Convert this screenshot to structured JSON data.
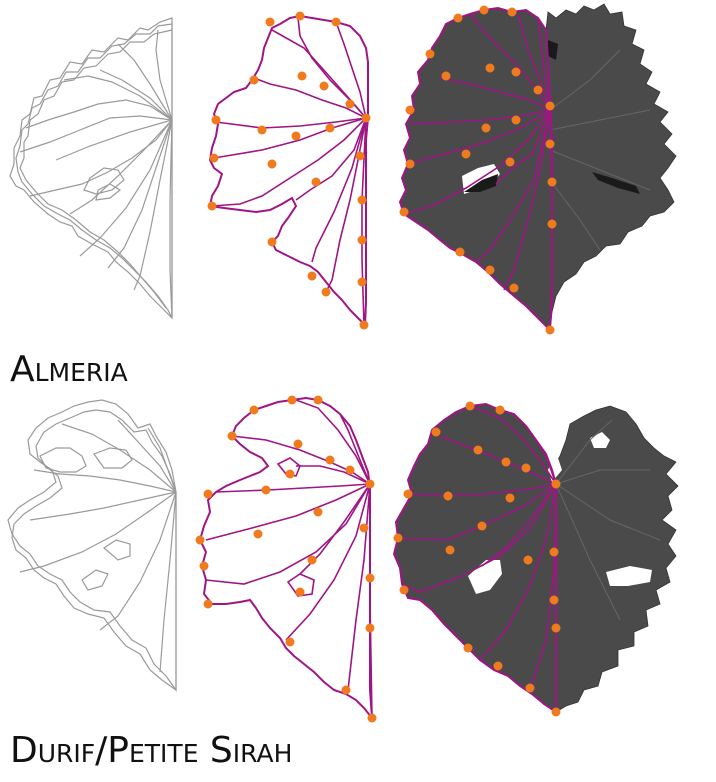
{
  "figure": {
    "rows": [
      {
        "label": "Almeria",
        "panels": [
          {
            "name": "Overlay of outlines",
            "kind": "overlay"
          },
          {
            "name": "Landmark outline",
            "kind": "outline"
          },
          {
            "name": "Leaf photograph with landmarks",
            "kind": "photo"
          }
        ]
      },
      {
        "label": "Durif/Petite Sirah",
        "panels": [
          {
            "name": "Overlay of outlines",
            "kind": "overlay"
          },
          {
            "name": "Landmark outline",
            "kind": "outline"
          },
          {
            "name": "Leaf photograph with landmarks",
            "kind": "photo"
          }
        ]
      }
    ],
    "colors": {
      "outline": "#a01585",
      "landmark": "#f07a1e",
      "overlay": "#9a9a9a",
      "leaf": "#444444"
    }
  }
}
